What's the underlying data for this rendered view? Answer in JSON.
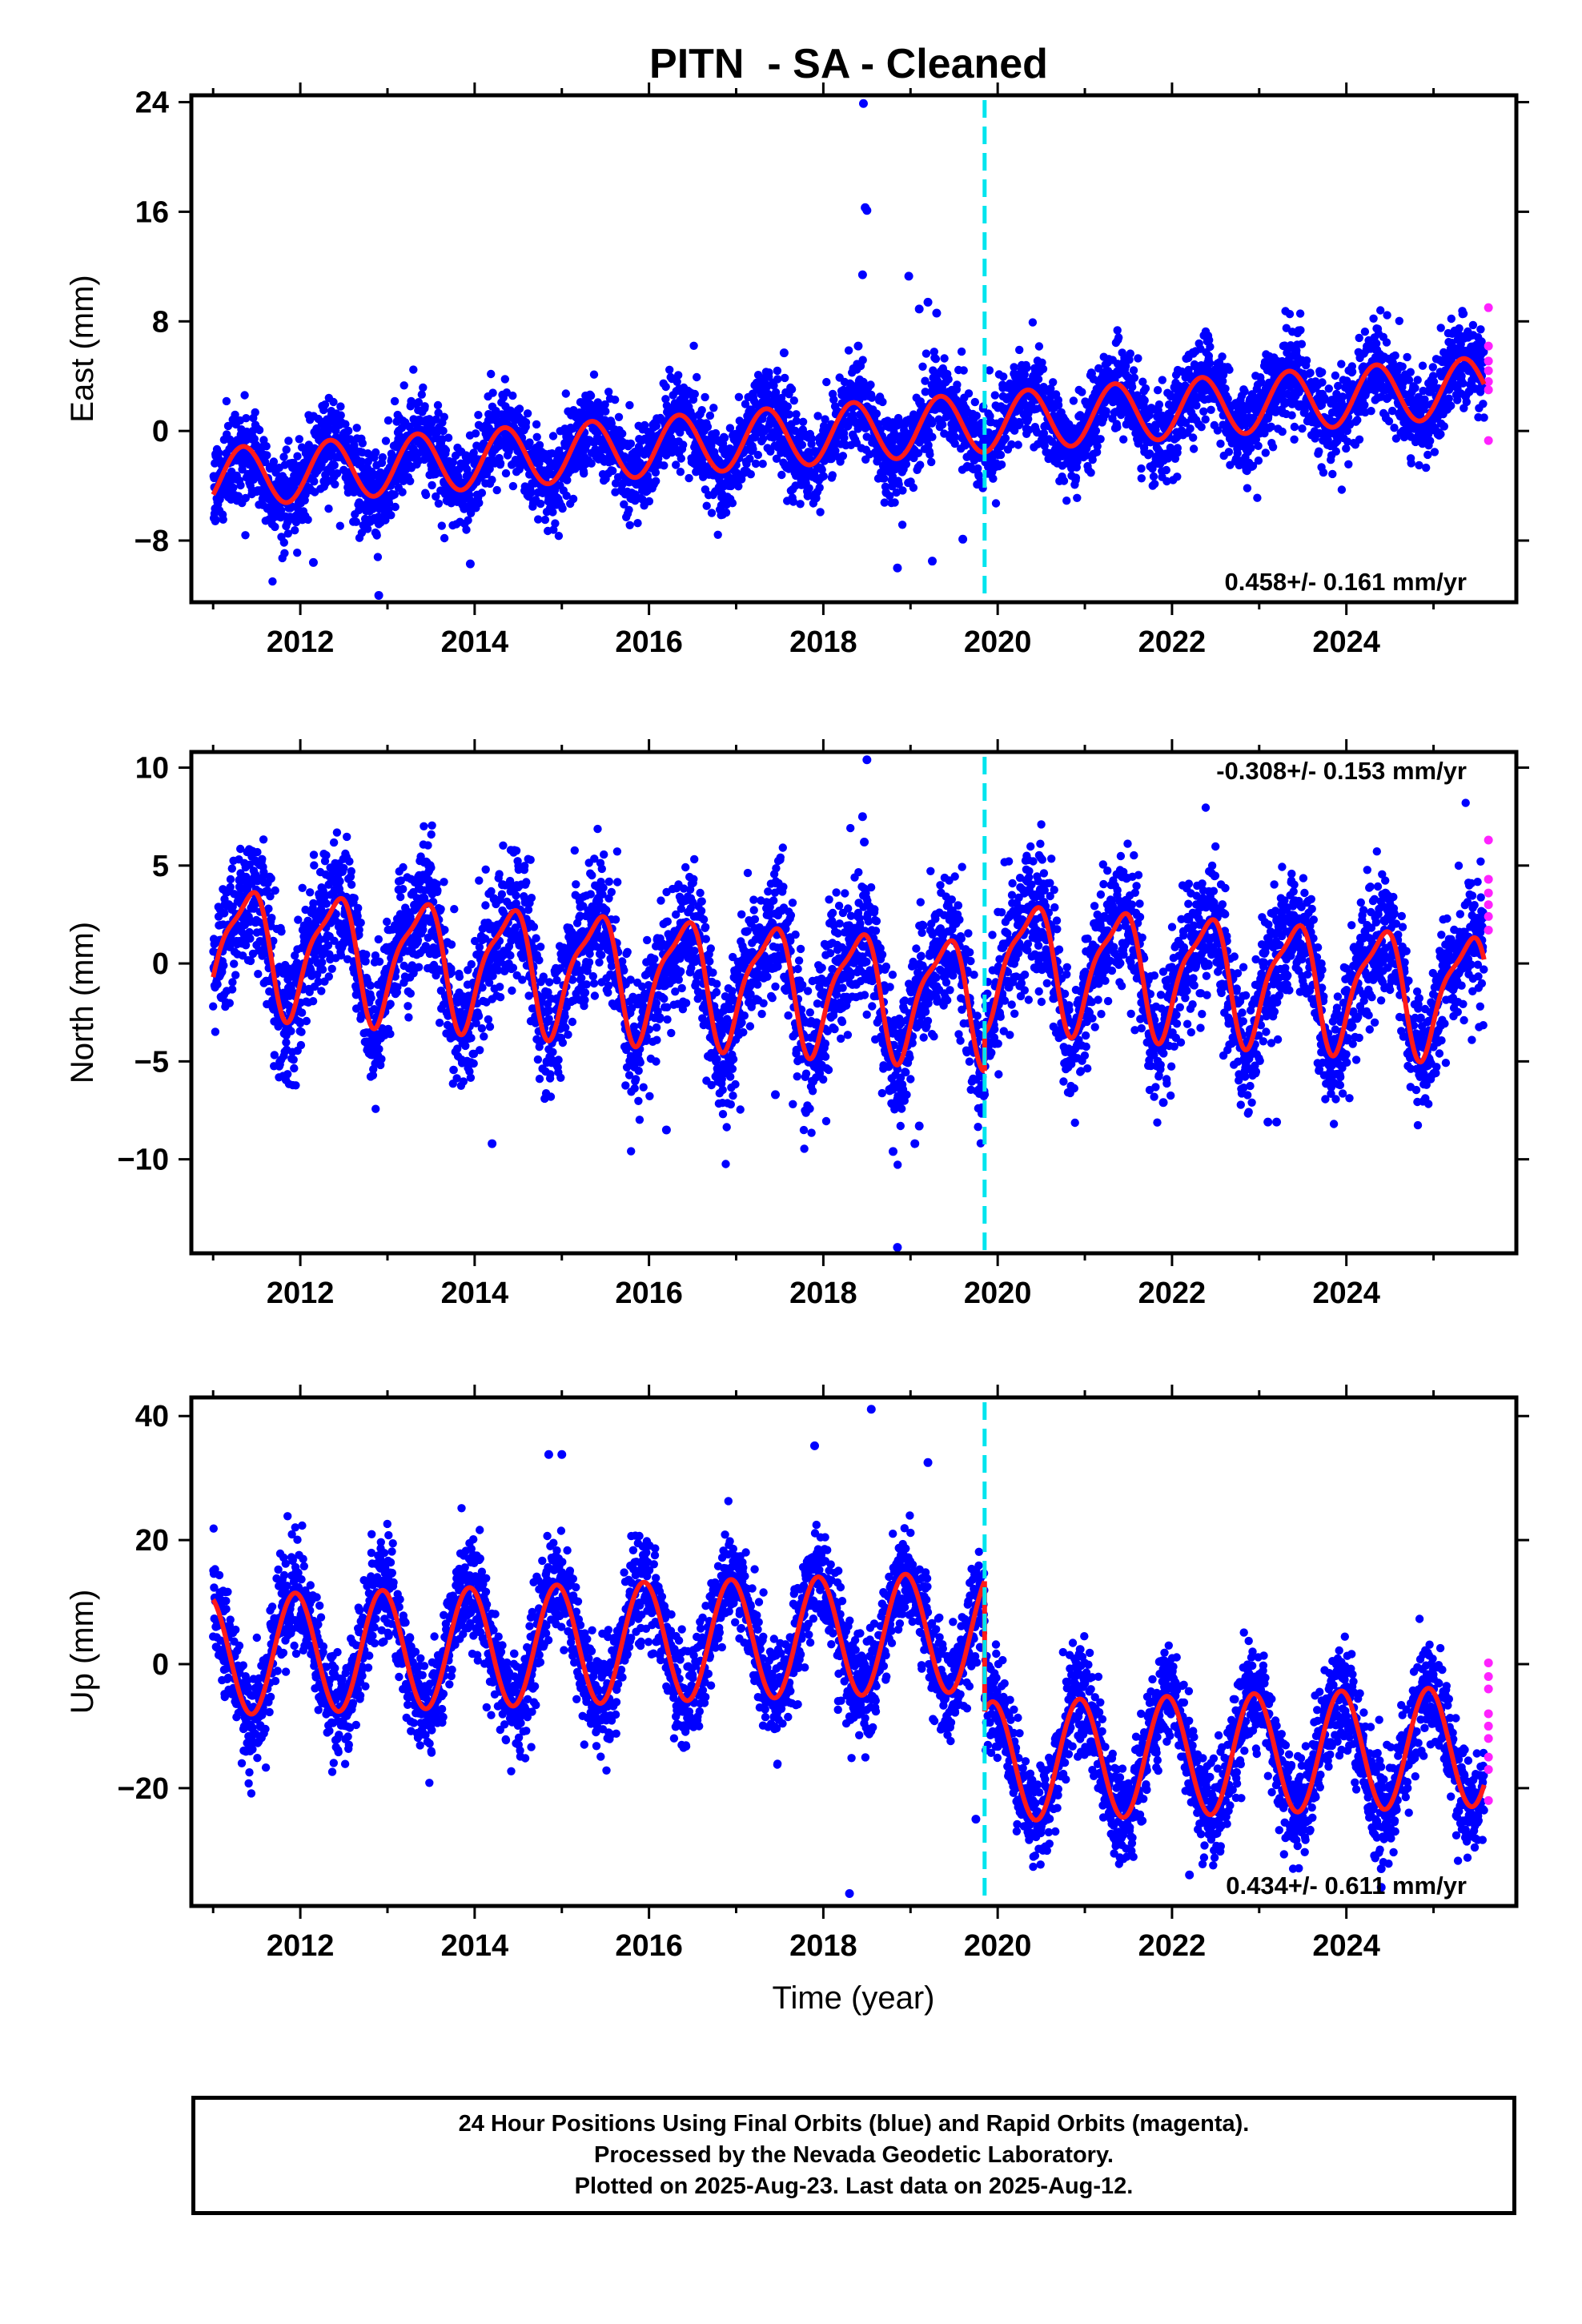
{
  "title": "PITN  - SA - Cleaned",
  "xlabel": "Time (year)",
  "colors": {
    "final": "#0000ff",
    "rapid": "#ff22ff",
    "model": "#ff1a1a",
    "event": "#00e5ee"
  },
  "footer": {
    "line1": "24 Hour Positions Using Final Orbits (blue) and Rapid Orbits (magenta).",
    "line2": "Processed by the Nevada Geodetic Laboratory.",
    "line3": "Plotted on 2025-Aug-23. Last data on 2025-Aug-12."
  },
  "chart_data": [
    {
      "type": "scatter",
      "component": "east",
      "ylabel": "East (mm)",
      "rate_label": "0.458+/- 0.161 mm/yr",
      "rate_position": "bottom-right",
      "xlim": [
        2010.75,
        2025.95
      ],
      "ylim": [
        -12.5,
        24.5
      ],
      "xticks": [
        2012,
        2014,
        2016,
        2018,
        2020,
        2022,
        2024
      ],
      "yticks": [
        -8,
        0,
        8,
        16,
        24
      ],
      "event_line_x": 2019.85,
      "model": {
        "start": 2011.0,
        "end": 2025.58,
        "offset": -3.45,
        "rate": 0.458,
        "ann_cos": -1.2,
        "ann_sin": 1.8,
        "step_at": 2019.85,
        "step": 0.0
      },
      "scatter_noise": 1.6,
      "outliers": [
        [
          2018.46,
          23.9
        ],
        [
          2018.48,
          16.3
        ],
        [
          2018.5,
          16.1
        ],
        [
          2018.45,
          11.4
        ],
        [
          2018.98,
          11.3
        ],
        [
          2019.2,
          9.4
        ],
        [
          2019.1,
          8.9
        ],
        [
          2019.3,
          8.6
        ],
        [
          2017.55,
          5.7
        ],
        [
          2018.4,
          6.2
        ],
        [
          2012.9,
          -12.0
        ],
        [
          2018.85,
          -10.0
        ],
        [
          2019.25,
          -9.5
        ],
        [
          2019.6,
          -7.9
        ],
        [
          2013.95,
          -9.7
        ],
        [
          2012.15,
          -9.6
        ]
      ],
      "rapid": [
        [
          2025.63,
          9.0
        ],
        [
          2025.63,
          6.2
        ],
        [
          2025.63,
          5.1
        ],
        [
          2025.63,
          4.4
        ],
        [
          2025.63,
          3.6
        ],
        [
          2025.63,
          3.0
        ],
        [
          2025.63,
          -0.7
        ]
      ]
    },
    {
      "type": "scatter",
      "component": "north",
      "ylabel": "North (mm)",
      "rate_label": "-0.308+/- 0.153 mm/yr",
      "rate_position": "top-right",
      "xlim": [
        2010.75,
        2025.95
      ],
      "ylim": [
        -14.8,
        10.8
      ],
      "xticks": [
        2012,
        2014,
        2016,
        2018,
        2020,
        2022,
        2024
      ],
      "yticks": [
        -10,
        -5,
        0,
        5,
        10
      ],
      "event_line_x": 2019.85,
      "model": {
        "start": 2011.0,
        "end": 2025.58,
        "offset": 0.9,
        "rate": -0.308,
        "ann_cos": -2.2,
        "ann_sin": 2.0,
        "semi_cos": 0.6,
        "semi_sin": 0.6,
        "step_at": 2019.85,
        "step": 2.0
      },
      "scatter_noise": 1.7,
      "outliers": [
        [
          2018.5,
          10.4
        ],
        [
          2018.45,
          7.5
        ],
        [
          2018.47,
          6.2
        ],
        [
          2018.85,
          -14.5
        ],
        [
          2018.8,
          -9.6
        ],
        [
          2019.05,
          -9.2
        ],
        [
          2014.2,
          -9.2
        ],
        [
          2019.1,
          -8.3
        ],
        [
          2023.1,
          -8.1
        ],
        [
          2023.2,
          -8.1
        ],
        [
          2016.2,
          -8.5
        ],
        [
          2021.9,
          -7.1
        ],
        [
          2017.45,
          -6.7
        ]
      ],
      "rapid": [
        [
          2025.63,
          6.3
        ],
        [
          2025.63,
          4.3
        ],
        [
          2025.63,
          3.6
        ],
        [
          2025.63,
          3.0
        ],
        [
          2025.63,
          2.4
        ],
        [
          2025.63,
          1.7
        ]
      ]
    },
    {
      "type": "scatter",
      "component": "up",
      "ylabel": "Up (mm)",
      "rate_label": "0.434+/- 0.611 mm/yr",
      "rate_position": "bottom-right",
      "xlim": [
        2010.75,
        2025.95
      ],
      "ylim": [
        -39,
        43
      ],
      "xticks": [
        2012,
        2014,
        2016,
        2018,
        2020,
        2022,
        2024
      ],
      "yticks": [
        -20,
        0,
        20,
        40
      ],
      "event_line_x": 2019.85,
      "model": {
        "start": 2011.0,
        "end": 2025.58,
        "offset": 1.4,
        "rate": 0.434,
        "ann_cos": 9.0,
        "ann_sin": -3.5,
        "step_at": 2019.85,
        "step": -21.0
      },
      "scatter_noise": 4.2,
      "outliers": [
        [
          2018.55,
          41.1
        ],
        [
          2017.9,
          35.2
        ],
        [
          2014.85,
          33.8
        ],
        [
          2015.0,
          33.8
        ],
        [
          2019.2,
          32.5
        ],
        [
          2018.3,
          -37.0
        ],
        [
          2019.75,
          -25.0
        ],
        [
          2022.2,
          -34.0
        ],
        [
          2024.4,
          -36.0
        ],
        [
          2024.4,
          -33.0
        ]
      ],
      "rapid": [
        [
          2025.63,
          0.2
        ],
        [
          2025.63,
          -2.0
        ],
        [
          2025.63,
          -4.0
        ],
        [
          2025.63,
          -8.0
        ],
        [
          2025.63,
          -10.0
        ],
        [
          2025.63,
          -12.0
        ],
        [
          2025.63,
          -15.0
        ],
        [
          2025.63,
          -17.0
        ],
        [
          2025.63,
          -22.0
        ]
      ]
    }
  ]
}
